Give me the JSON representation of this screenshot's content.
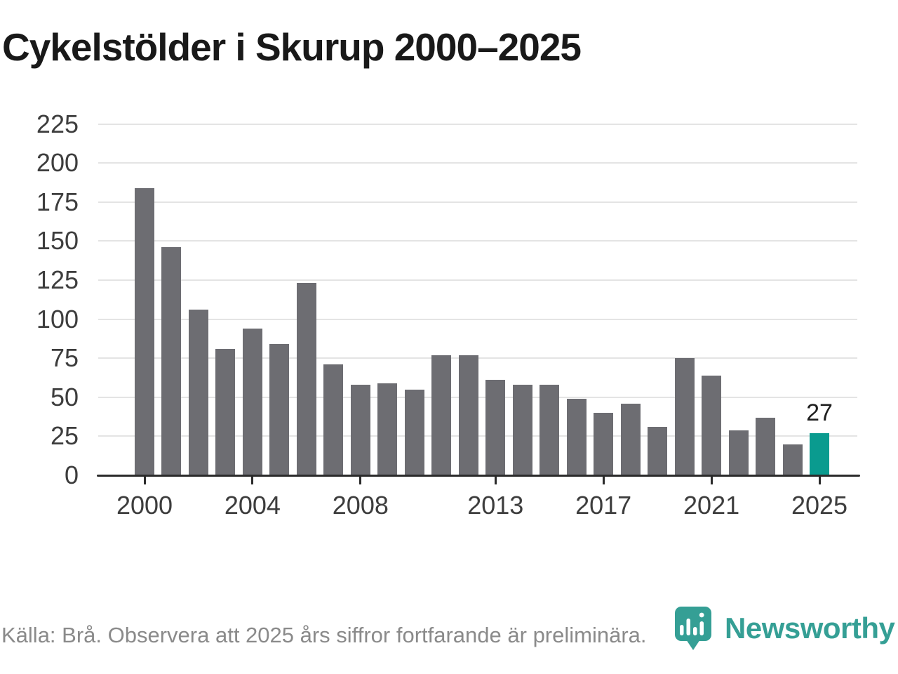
{
  "title": "Cykelstölder i Skurup 2000–2025",
  "chart_data": {
    "type": "bar",
    "x": [
      2000,
      2001,
      2002,
      2003,
      2004,
      2005,
      2006,
      2007,
      2008,
      2009,
      2010,
      2011,
      2012,
      2013,
      2014,
      2015,
      2016,
      2017,
      2018,
      2019,
      2020,
      2021,
      2022,
      2023,
      2024,
      2025
    ],
    "values": [
      184,
      146,
      106,
      81,
      94,
      84,
      123,
      71,
      58,
      59,
      55,
      77,
      77,
      61,
      58,
      58,
      49,
      40,
      46,
      31,
      75,
      64,
      29,
      37,
      20,
      27
    ],
    "title": "Cykelstölder i Skurup 2000–2025",
    "xlabel": "",
    "ylabel": "",
    "ylim": [
      0,
      225
    ],
    "yticks": [
      0,
      25,
      50,
      75,
      100,
      125,
      150,
      175,
      200,
      225
    ],
    "xticks": [
      2000,
      2004,
      2008,
      2013,
      2017,
      2021,
      2025
    ],
    "grid": true,
    "legend": "none",
    "bar_color": "#6d6d72",
    "highlight_year": 2025,
    "highlight_color": "#0a9b8f",
    "highlight_value_label": "27"
  },
  "footer": {
    "source_note": "Källa: Brå. Observera att 2025 års siffror fortfarande är preliminära."
  },
  "logo": {
    "text": "Newsworthy",
    "color": "#359f95",
    "icon": "newsworthy-pin-chart-icon"
  }
}
